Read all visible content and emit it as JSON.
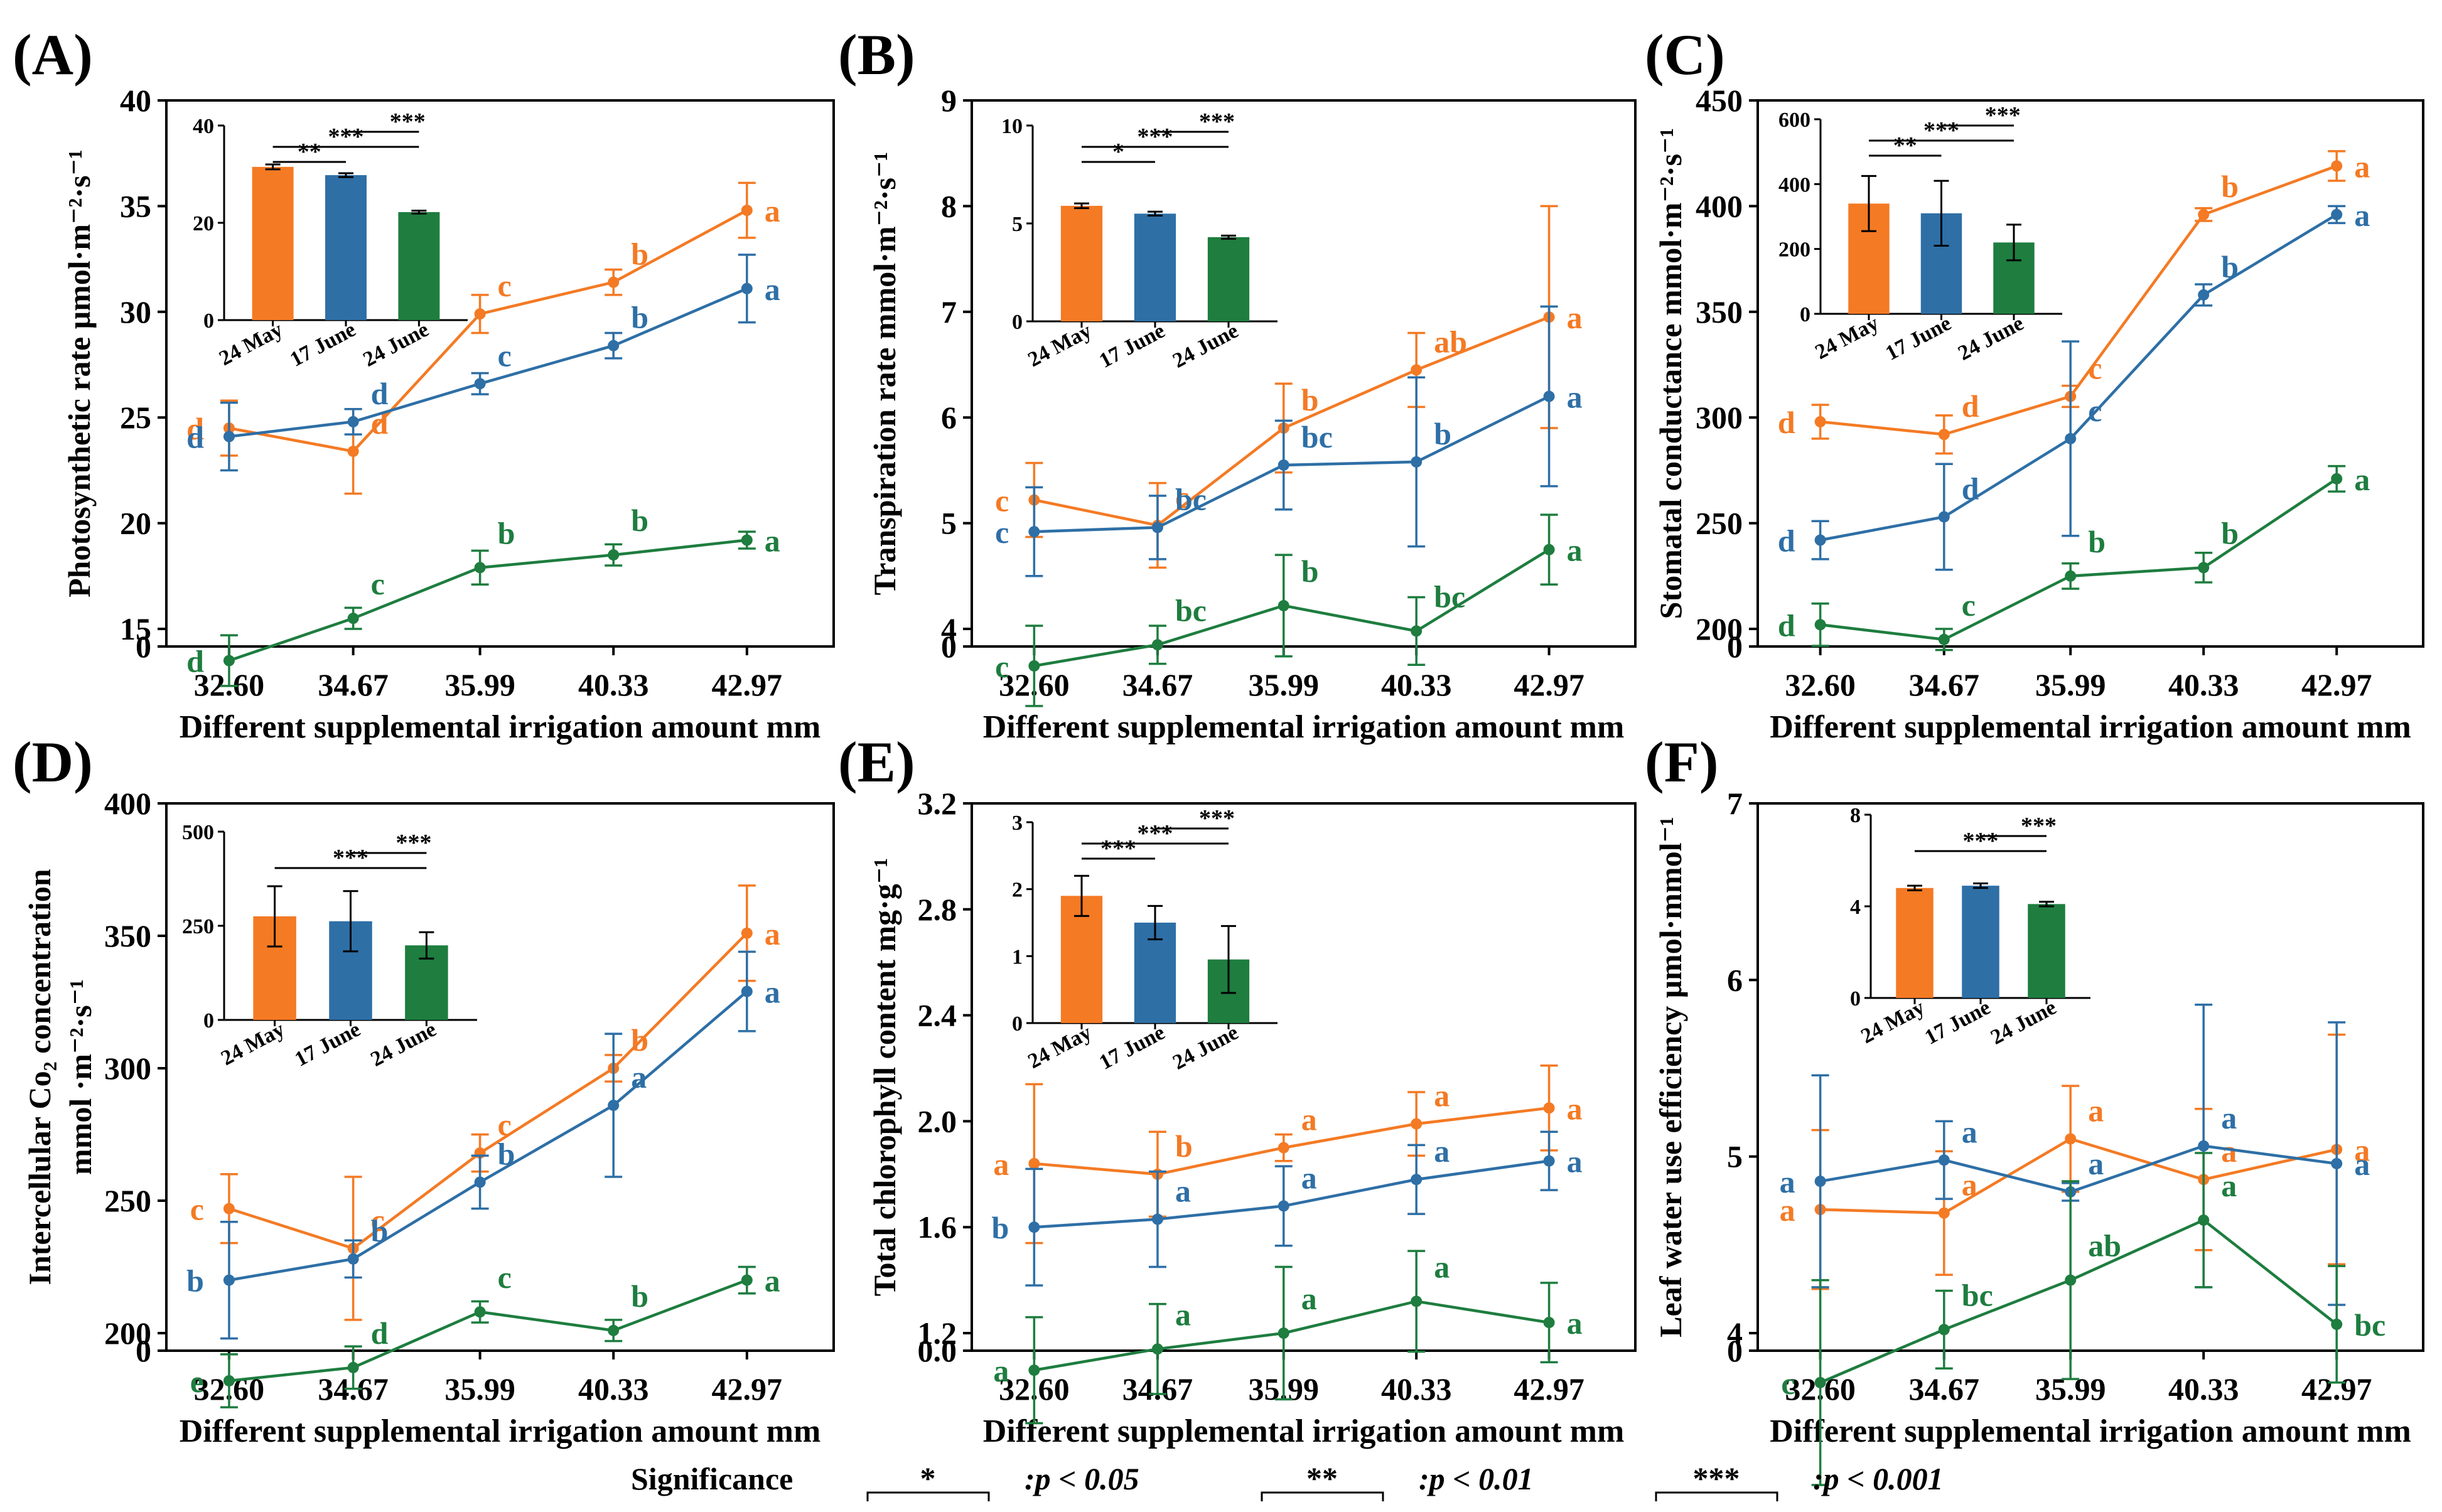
{
  "figure": {
    "x_axis_title": "Different supplemental irrigation amount mm",
    "colors": {
      "24 May": "#F47A24",
      "17 June": "#2E6FA6",
      "24 June": "#1E7D3F"
    },
    "legend": {
      "title": "Significance",
      "items": [
        {
          "marker": "*",
          "text": ":p < 0.05"
        },
        {
          "marker": "**",
          "text": ":p < 0.01"
        },
        {
          "marker": "***",
          "text": ":p < 0.001"
        }
      ]
    }
  },
  "chart_data": [
    {
      "panel": "(A)",
      "type": "line",
      "ylabel": "Photosynthetic rate μmol·m⁻²·s⁻¹",
      "categories": [
        "32.60",
        "34.67",
        "35.99",
        "40.33",
        "42.97"
      ],
      "yticks": [
        0,
        15,
        20,
        25,
        30,
        35,
        40
      ],
      "ylim": [
        0,
        40
      ],
      "series": [
        {
          "name": "24 May",
          "values": [
            24.5,
            23.4,
            29.9,
            31.4,
            34.8
          ],
          "errors": [
            1.3,
            2.0,
            0.9,
            0.6,
            1.3
          ],
          "letters": [
            "d",
            "d",
            "c",
            "b",
            "a"
          ]
        },
        {
          "name": "17 June",
          "values": [
            24.1,
            24.8,
            26.6,
            28.4,
            31.1
          ],
          "errors": [
            1.6,
            0.6,
            0.5,
            0.6,
            1.6
          ],
          "letters": [
            "d",
            "d",
            "c",
            "b",
            "a"
          ]
        },
        {
          "name": "24 June",
          "values": [
            13.5,
            15.5,
            17.9,
            18.5,
            19.2
          ],
          "errors": [
            1.2,
            0.5,
            0.8,
            0.5,
            0.4
          ],
          "letters": [
            "d",
            "c",
            "b",
            "b",
            "a"
          ]
        }
      ],
      "inset": {
        "type": "bar",
        "categories": [
          "24 May",
          "17 June",
          "24 June"
        ],
        "values": [
          31.5,
          29.8,
          22.2
        ],
        "errors": [
          0.5,
          0.4,
          0.3
        ],
        "yticks": [
          0,
          20,
          40
        ],
        "ylim": [
          0,
          40
        ],
        "brackets": [
          {
            "from": 0,
            "to": 1,
            "label": "**"
          },
          {
            "from": 0,
            "to": 2,
            "label": "***"
          },
          {
            "from": 1,
            "to": 2,
            "label": "***"
          }
        ]
      }
    },
    {
      "panel": "(B)",
      "type": "line",
      "ylabel": "Transpiration rate mmol·m⁻²·s⁻¹",
      "categories": [
        "32.60",
        "34.67",
        "35.99",
        "40.33",
        "42.97"
      ],
      "yticks": [
        0,
        4,
        5,
        6,
        7,
        8,
        9
      ],
      "ylim": [
        0,
        9
      ],
      "series": [
        {
          "name": "24 May",
          "values": [
            5.22,
            4.98,
            5.9,
            6.45,
            6.95
          ],
          "errors": [
            0.35,
            0.4,
            0.42,
            0.35,
            1.05
          ],
          "letters": [
            "c",
            "c",
            "b",
            "ab",
            "a"
          ]
        },
        {
          "name": "17 June",
          "values": [
            4.92,
            4.96,
            5.55,
            5.58,
            6.2
          ],
          "errors": [
            0.42,
            0.3,
            0.42,
            0.8,
            0.85
          ],
          "letters": [
            "c",
            "bc",
            "bc",
            "b",
            "a"
          ]
        },
        {
          "name": "24 June",
          "values": [
            3.65,
            3.85,
            4.22,
            3.98,
            4.75
          ],
          "errors": [
            0.38,
            0.18,
            0.48,
            0.32,
            0.33
          ],
          "letters": [
            "c",
            "bc",
            "b",
            "bc",
            "a"
          ]
        }
      ],
      "inset": {
        "type": "bar",
        "categories": [
          "24 May",
          "17 June",
          "24 June"
        ],
        "values": [
          5.9,
          5.5,
          4.3
        ],
        "errors": [
          0.12,
          0.1,
          0.08
        ],
        "yticks": [
          0,
          5,
          10
        ],
        "ylim": [
          0,
          10
        ],
        "brackets": [
          {
            "from": 0,
            "to": 1,
            "label": "*"
          },
          {
            "from": 0,
            "to": 2,
            "label": "***"
          },
          {
            "from": 1,
            "to": 2,
            "label": "***"
          }
        ]
      }
    },
    {
      "panel": "(C)",
      "type": "line",
      "ylabel": "Stomatal conductance mmol·m⁻²·s⁻¹",
      "categories": [
        "32.60",
        "34.67",
        "35.99",
        "40.33",
        "42.97"
      ],
      "yticks": [
        0,
        200,
        250,
        300,
        350,
        400,
        450
      ],
      "ylim": [
        0,
        450
      ],
      "series": [
        {
          "name": "24 May",
          "values": [
            298,
            292,
            310,
            396,
            419
          ],
          "errors": [
            8,
            9,
            5,
            3,
            7
          ],
          "letters": [
            "d",
            "d",
            "c",
            "b",
            "a"
          ]
        },
        {
          "name": "17 June",
          "values": [
            242,
            253,
            290,
            358,
            396
          ],
          "errors": [
            9,
            25,
            46,
            5,
            4
          ],
          "letters": [
            "d",
            "d",
            "c",
            "b",
            "a"
          ]
        },
        {
          "name": "24 June",
          "values": [
            202,
            195,
            225,
            229,
            271
          ],
          "errors": [
            10,
            5,
            6,
            7,
            6
          ],
          "letters": [
            "d",
            "c",
            "b",
            "b",
            "a"
          ]
        }
      ],
      "inset": {
        "type": "bar",
        "categories": [
          "24 May",
          "17 June",
          "24 June"
        ],
        "values": [
          340,
          310,
          220
        ],
        "errors": [
          85,
          100,
          55
        ],
        "yticks": [
          0,
          200,
          400,
          600
        ],
        "ylim": [
          0,
          600
        ],
        "brackets": [
          {
            "from": 0,
            "to": 1,
            "label": "**"
          },
          {
            "from": 0,
            "to": 2,
            "label": "***"
          },
          {
            "from": 1,
            "to": 2,
            "label": "***"
          }
        ]
      }
    },
    {
      "panel": "(D)",
      "type": "line",
      "ylabel_line1": "Intercellular Co₂ concentration",
      "ylabel_line2": "mmol ·m⁻²·s⁻¹",
      "categories": [
        "32.60",
        "34.67",
        "35.99",
        "40.33",
        "42.97"
      ],
      "yticks": [
        0,
        200,
        250,
        300,
        350,
        400
      ],
      "ylim": [
        0,
        400
      ],
      "series": [
        {
          "name": "24 May",
          "values": [
            247,
            232,
            268,
            300,
            351
          ],
          "errors": [
            13,
            27,
            7,
            5,
            18
          ],
          "letters": [
            "c",
            "c",
            "c",
            "b",
            "a"
          ]
        },
        {
          "name": "17 June",
          "values": [
            220,
            228,
            257,
            286,
            329
          ],
          "errors": [
            22,
            7,
            10,
            27,
            15
          ],
          "letters": [
            "b",
            "b",
            "b",
            "a",
            "a"
          ]
        },
        {
          "name": "24 June",
          "values": [
            182,
            187,
            208,
            201,
            220
          ],
          "errors": [
            10,
            8,
            4,
            4,
            5
          ],
          "letters": [
            "e",
            "d",
            "c",
            "b",
            "a"
          ]
        }
      ],
      "inset": {
        "type": "bar",
        "categories": [
          "24 May",
          "17 June",
          "24 June"
        ],
        "values": [
          275,
          262,
          198
        ],
        "errors": [
          80,
          80,
          35
        ],
        "yticks": [
          0,
          250,
          500
        ],
        "ylim": [
          0,
          500
        ],
        "brackets": [
          {
            "from": 0,
            "to": 2,
            "label": "***"
          },
          {
            "from": 1,
            "to": 2,
            "label": "***"
          }
        ]
      }
    },
    {
      "panel": "(E)",
      "type": "line",
      "ylabel": "Total chlorophyll content mg·g⁻¹",
      "categories": [
        "32.60",
        "34.67",
        "35.99",
        "40.33",
        "42.97"
      ],
      "yticks": [
        0,
        1.2,
        1.6,
        2.0,
        2.4,
        2.8,
        3.2
      ],
      "ylim": [
        0,
        3.2
      ],
      "series": [
        {
          "name": "24 May",
          "values": [
            1.84,
            1.8,
            1.9,
            1.99,
            2.05
          ],
          "errors": [
            0.3,
            0.16,
            0.05,
            0.12,
            0.16
          ],
          "letters": [
            "a",
            "b",
            "a",
            "a",
            "a"
          ]
        },
        {
          "name": "17 June",
          "values": [
            1.6,
            1.63,
            1.68,
            1.78,
            1.85
          ],
          "errors": [
            0.22,
            0.18,
            0.15,
            0.13,
            0.11
          ],
          "letters": [
            "b",
            "a",
            "a",
            "a",
            "a"
          ]
        },
        {
          "name": "24 June",
          "values": [
            1.06,
            1.14,
            1.2,
            1.32,
            1.24
          ],
          "errors": [
            0.2,
            0.17,
            0.25,
            0.19,
            0.15
          ],
          "letters": [
            "a",
            "a",
            "a",
            "a",
            "a"
          ]
        }
      ],
      "inset": {
        "type": "bar",
        "categories": [
          "24 May",
          "17 June",
          "24 June"
        ],
        "values": [
          1.9,
          1.5,
          0.95
        ],
        "errors": [
          0.3,
          0.25,
          0.5
        ],
        "yticks": [
          0,
          1,
          2,
          3
        ],
        "ylim": [
          0,
          3
        ],
        "brackets": [
          {
            "from": 0,
            "to": 1,
            "label": "***"
          },
          {
            "from": 0,
            "to": 2,
            "label": "***"
          },
          {
            "from": 1,
            "to": 2,
            "label": "***"
          }
        ]
      }
    },
    {
      "panel": "(F)",
      "type": "line",
      "ylabel": "Leaf water use efficiency μmol·mmol⁻¹",
      "categories": [
        "32.60",
        "34.67",
        "35.99",
        "40.33",
        "42.97"
      ],
      "yticks": [
        0,
        4,
        5,
        6,
        7
      ],
      "ylim": [
        0,
        7
      ],
      "series": [
        {
          "name": "24 May",
          "values": [
            4.7,
            4.68,
            5.1,
            4.87,
            5.04
          ],
          "errors": [
            0.45,
            0.35,
            0.3,
            0.4,
            0.65
          ],
          "letters": [
            "a",
            "a",
            "a",
            "a",
            "a"
          ]
        },
        {
          "name": "17 June",
          "values": [
            4.86,
            4.98,
            4.8,
            5.06,
            4.96
          ],
          "errors": [
            0.6,
            0.22,
            0.05,
            0.8,
            0.8
          ],
          "letters": [
            "a",
            "a",
            "a",
            "a",
            "a"
          ]
        },
        {
          "name": "24 June",
          "values": [
            3.72,
            4.02,
            4.3,
            4.64,
            4.05
          ],
          "errors": [
            0.58,
            0.22,
            0.56,
            0.38,
            0.33
          ],
          "letters": [
            "c",
            "bc",
            "ab",
            "a",
            "bc"
          ]
        }
      ],
      "inset": {
        "type": "bar",
        "categories": [
          "24 May",
          "17 June",
          "24 June"
        ],
        "values": [
          4.8,
          4.9,
          4.1
        ],
        "errors": [
          0.1,
          0.1,
          0.1
        ],
        "yticks": [
          0,
          4,
          8
        ],
        "ylim": [
          0,
          8
        ],
        "brackets": [
          {
            "from": 0,
            "to": 2,
            "label": "***"
          },
          {
            "from": 1,
            "to": 2,
            "label": "***"
          }
        ]
      }
    }
  ]
}
